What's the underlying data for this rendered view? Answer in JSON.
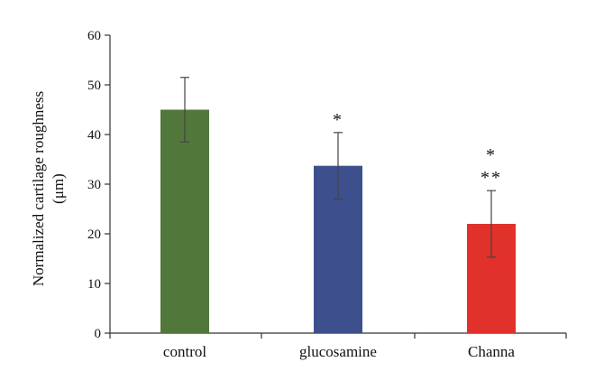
{
  "chart_data": {
    "type": "bar",
    "categories": [
      "control",
      "glucosamine",
      "Channa"
    ],
    "values": [
      45,
      33.7,
      22
    ],
    "errors": [
      6.5,
      6.7,
      6.7
    ],
    "colors": [
      "#52773a",
      "#3d4f8c",
      "#e0312b"
    ],
    "annotations": [
      [],
      [
        "*"
      ],
      [
        "*",
        "**"
      ]
    ],
    "ylabel_lines": [
      "Normalized cartilage roughness",
      "(μm)"
    ],
    "yticks": [
      0,
      10,
      20,
      30,
      40,
      50,
      60
    ],
    "ylim": [
      0,
      60
    ],
    "grid": false
  }
}
